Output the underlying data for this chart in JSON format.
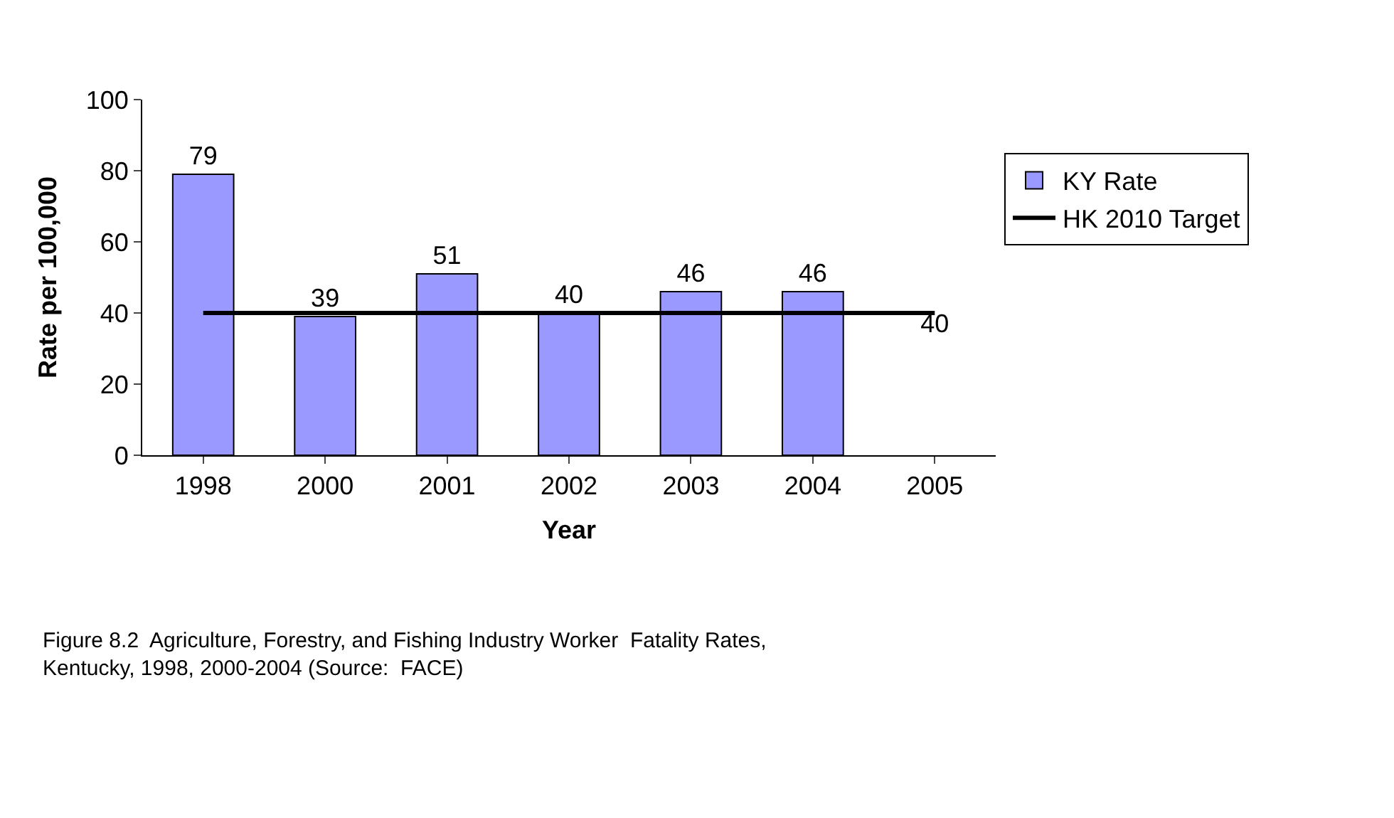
{
  "chart_data": {
    "type": "bar",
    "xlabel": "Year",
    "ylabel": "Rate per 100,000",
    "categories": [
      "1998",
      "2000",
      "2001",
      "2002",
      "2003",
      "2004",
      "2005"
    ],
    "series": [
      {
        "name": "KY Rate",
        "color": "#9999ff",
        "values": [
          79,
          39,
          51,
          40,
          46,
          46,
          null
        ],
        "value_labels": [
          "79",
          "39",
          "51",
          "40",
          "46",
          "46",
          null
        ]
      },
      {
        "name": "HK 2010 Target",
        "type": "line",
        "color": "#000000",
        "values": [
          40,
          40,
          40,
          40,
          40,
          40,
          40
        ],
        "value_labels": [
          null,
          null,
          null,
          null,
          null,
          null,
          "40"
        ]
      }
    ],
    "ylim": [
      0,
      100
    ],
    "yticks": [
      0,
      20,
      40,
      60,
      80,
      100
    ],
    "legend": "right",
    "marker": "none",
    "line_style": "solid",
    "annotations": [
      "Figure 8.2  Agriculture, Forestry, and Fishing Industry Worker  Fatality Rates, Kentucky, 1998, 2000-2004 (Source:  FACE)"
    ]
  }
}
